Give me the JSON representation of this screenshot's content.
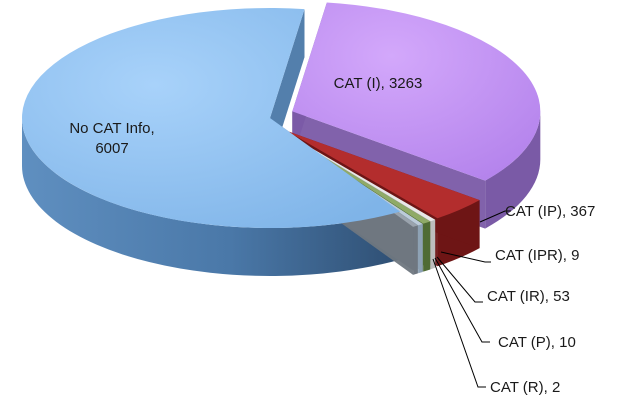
{
  "chart_data": {
    "type": "pie",
    "title": "",
    "slices": [
      {
        "label": "CAT (I)",
        "value": 3263,
        "color": "#c08ff2",
        "dark": "#7a5aa6",
        "exploded": true,
        "text": [
          "CAT (I), 3263"
        ]
      },
      {
        "label": "CAT (IP)",
        "value": 367,
        "color": "#b32d2d",
        "dark": "#6e1515",
        "exploded": true,
        "text": [
          "CAT (IP), 367"
        ]
      },
      {
        "label": "CAT (IPR)",
        "value": 9,
        "color": "#e8e8e8",
        "dark": "#bdbdbd",
        "exploded": true,
        "text": [
          "CAT (IPR),  9"
        ]
      },
      {
        "label": "CAT (IR)",
        "value": 53,
        "color": "#8faa68",
        "dark": "#4f6b35",
        "exploded": true,
        "text": [
          "CAT (IR), 53"
        ]
      },
      {
        "label": "CAT (P)",
        "value": 10,
        "color": "#bccbd9",
        "dark": "#8ea2b5",
        "exploded": true,
        "text": [
          "CAT (P), 10"
        ]
      },
      {
        "label": "CAT (R)",
        "value": 2,
        "color": "#9aa3ad",
        "dark": "#6f7780",
        "exploded": true,
        "text": [
          "CAT (R), 2"
        ]
      },
      {
        "label": "No CAT Info",
        "value": 6007,
        "color": "#8cc0f0",
        "dark": "#4a78a8",
        "exploded": false,
        "text": [
          "No CAT Info,",
          "6007"
        ]
      }
    ],
    "style": "3d-exploded"
  }
}
